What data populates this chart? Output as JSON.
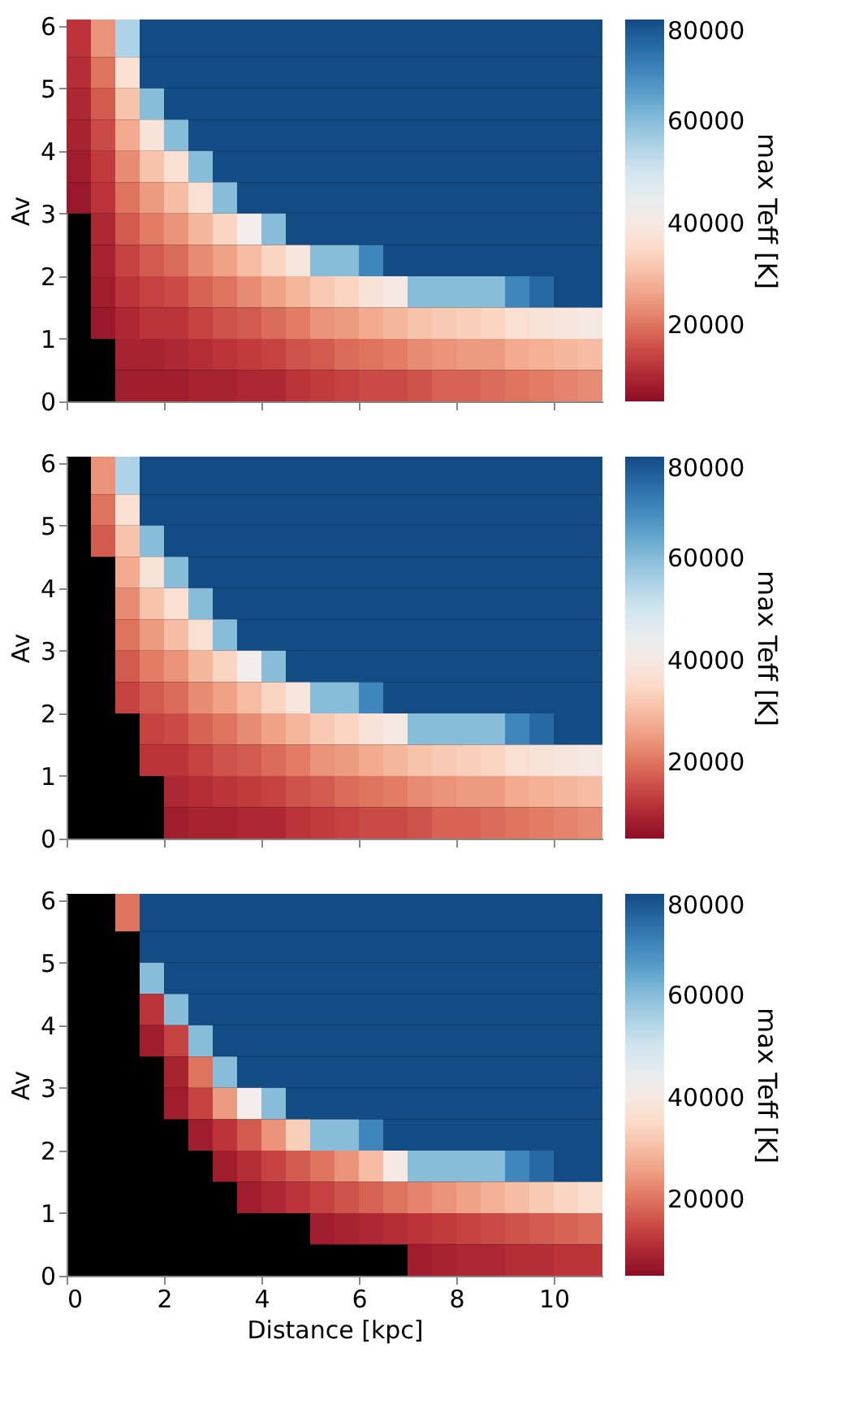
{
  "chart_data": [
    {
      "type": "heatmap",
      "tick_labels": "y",
      "ylabel": "Av",
      "clabel": "max Teff [K]",
      "xlim": [
        0,
        11
      ],
      "ylim": [
        0,
        6.1
      ],
      "xticks": [
        0,
        2,
        4,
        6,
        8,
        10
      ],
      "yticks": [
        0,
        1,
        2,
        3,
        4,
        5,
        6
      ],
      "clim": [
        5000,
        80000
      ],
      "cticks": [
        20000,
        40000,
        60000,
        80000
      ],
      "x": [
        0.25,
        0.75,
        1.25,
        1.75,
        2.25,
        2.75,
        3.25,
        3.75,
        4.25,
        4.75,
        5.25,
        5.75,
        6.25,
        6.75,
        7.25,
        7.75,
        8.25,
        8.75,
        9.25,
        9.75,
        10.25,
        10.75
      ],
      "y": [
        5.75,
        5.25,
        4.75,
        4.25,
        3.75,
        3.25,
        2.75,
        2.25,
        1.75,
        1.25,
        0.75,
        0.25
      ],
      "cells": [
        [
          12000,
          24000,
          55000,
          80000,
          80000,
          80000,
          80000,
          80000,
          80000,
          80000,
          80000,
          80000,
          80000,
          80000,
          80000,
          80000,
          80000,
          80000,
          80000,
          80000,
          80000,
          80000
        ],
        [
          11000,
          20000,
          37000,
          80000,
          80000,
          80000,
          80000,
          80000,
          80000,
          80000,
          80000,
          80000,
          80000,
          80000,
          80000,
          80000,
          80000,
          80000,
          80000,
          80000,
          80000,
          80000
        ],
        [
          10000,
          17000,
          31000,
          60000,
          80000,
          80000,
          80000,
          80000,
          80000,
          80000,
          80000,
          80000,
          80000,
          80000,
          80000,
          80000,
          80000,
          80000,
          80000,
          80000,
          80000,
          80000
        ],
        [
          9000,
          15000,
          27000,
          38000,
          60000,
          80000,
          80000,
          80000,
          80000,
          80000,
          80000,
          80000,
          80000,
          80000,
          80000,
          80000,
          80000,
          80000,
          80000,
          80000,
          80000,
          80000
        ],
        [
          8000,
          13000,
          23000,
          31000,
          37000,
          60000,
          80000,
          80000,
          80000,
          80000,
          80000,
          80000,
          80000,
          80000,
          80000,
          80000,
          80000,
          80000,
          80000,
          80000,
          80000,
          80000
        ],
        [
          7000,
          12000,
          20000,
          25000,
          30000,
          37000,
          60000,
          80000,
          80000,
          80000,
          80000,
          80000,
          80000,
          80000,
          80000,
          80000,
          80000,
          80000,
          80000,
          80000,
          80000,
          80000
        ],
        [
          null,
          10000,
          17000,
          21000,
          24000,
          29000,
          34000,
          42000,
          60000,
          80000,
          80000,
          80000,
          80000,
          80000,
          80000,
          80000,
          80000,
          80000,
          80000,
          80000,
          80000,
          80000
        ],
        [
          null,
          9000,
          14000,
          17000,
          19000,
          23000,
          26000,
          30000,
          34000,
          39000,
          60000,
          60000,
          70000,
          80000,
          80000,
          80000,
          80000,
          80000,
          80000,
          80000,
          80000,
          80000
        ],
        [
          null,
          8000,
          12000,
          14000,
          15000,
          18000,
          20000,
          23000,
          26000,
          29000,
          32000,
          34000,
          38000,
          40000,
          60000,
          60000,
          60000,
          60000,
          70000,
          75000,
          80000,
          80000
        ],
        [
          null,
          7000,
          10000,
          12000,
          12000,
          14000,
          16000,
          17000,
          19000,
          21000,
          24000,
          25000,
          27000,
          29000,
          31000,
          32000,
          33000,
          34000,
          37000,
          38000,
          39000,
          40000
        ],
        [
          null,
          null,
          9000,
          9000,
          10000,
          11000,
          12000,
          13000,
          14000,
          16000,
          17000,
          19000,
          20000,
          21000,
          23000,
          24000,
          25000,
          25000,
          27000,
          28000,
          29000,
          30000
        ],
        [
          null,
          null,
          8000,
          8000,
          8000,
          9000,
          9000,
          10000,
          10000,
          12000,
          13000,
          14000,
          15000,
          15000,
          16000,
          18000,
          18000,
          19000,
          20000,
          21000,
          22000,
          23000
        ]
      ]
    },
    {
      "type": "heatmap",
      "tick_labels": "y",
      "ylabel": "Av",
      "clabel": "max Teff [K]",
      "xlim": [
        0,
        11
      ],
      "ylim": [
        0,
        6.1
      ],
      "xticks": [
        0,
        2,
        4,
        6,
        8,
        10
      ],
      "yticks": [
        0,
        1,
        2,
        3,
        4,
        5,
        6
      ],
      "clim": [
        5000,
        80000
      ],
      "cticks": [
        20000,
        40000,
        60000,
        80000
      ],
      "x": [
        0.25,
        0.75,
        1.25,
        1.75,
        2.25,
        2.75,
        3.25,
        3.75,
        4.25,
        4.75,
        5.25,
        5.75,
        6.25,
        6.75,
        7.25,
        7.75,
        8.25,
        8.75,
        9.25,
        9.75,
        10.25,
        10.75
      ],
      "y": [
        5.75,
        5.25,
        4.75,
        4.25,
        3.75,
        3.25,
        2.75,
        2.25,
        1.75,
        1.25,
        0.75,
        0.25
      ],
      "cells": [
        [
          null,
          24000,
          55000,
          80000,
          80000,
          80000,
          80000,
          80000,
          80000,
          80000,
          80000,
          80000,
          80000,
          80000,
          80000,
          80000,
          80000,
          80000,
          80000,
          80000,
          80000,
          80000
        ],
        [
          null,
          20000,
          37000,
          80000,
          80000,
          80000,
          80000,
          80000,
          80000,
          80000,
          80000,
          80000,
          80000,
          80000,
          80000,
          80000,
          80000,
          80000,
          80000,
          80000,
          80000,
          80000
        ],
        [
          null,
          17000,
          31000,
          60000,
          80000,
          80000,
          80000,
          80000,
          80000,
          80000,
          80000,
          80000,
          80000,
          80000,
          80000,
          80000,
          80000,
          80000,
          80000,
          80000,
          80000,
          80000
        ],
        [
          null,
          null,
          27000,
          38000,
          60000,
          80000,
          80000,
          80000,
          80000,
          80000,
          80000,
          80000,
          80000,
          80000,
          80000,
          80000,
          80000,
          80000,
          80000,
          80000,
          80000,
          80000
        ],
        [
          null,
          null,
          23000,
          31000,
          37000,
          60000,
          80000,
          80000,
          80000,
          80000,
          80000,
          80000,
          80000,
          80000,
          80000,
          80000,
          80000,
          80000,
          80000,
          80000,
          80000,
          80000
        ],
        [
          null,
          null,
          20000,
          25000,
          30000,
          37000,
          60000,
          80000,
          80000,
          80000,
          80000,
          80000,
          80000,
          80000,
          80000,
          80000,
          80000,
          80000,
          80000,
          80000,
          80000,
          80000
        ],
        [
          null,
          null,
          17000,
          21000,
          24000,
          29000,
          34000,
          42000,
          60000,
          80000,
          80000,
          80000,
          80000,
          80000,
          80000,
          80000,
          80000,
          80000,
          80000,
          80000,
          80000,
          80000
        ],
        [
          null,
          null,
          14000,
          17000,
          19000,
          23000,
          26000,
          30000,
          34000,
          39000,
          60000,
          60000,
          70000,
          80000,
          80000,
          80000,
          80000,
          80000,
          80000,
          80000,
          80000,
          80000
        ],
        [
          null,
          null,
          null,
          14000,
          15000,
          18000,
          20000,
          23000,
          26000,
          29000,
          32000,
          34000,
          38000,
          40000,
          60000,
          60000,
          60000,
          60000,
          70000,
          75000,
          80000,
          80000
        ],
        [
          null,
          null,
          null,
          12000,
          12000,
          14000,
          16000,
          17000,
          19000,
          21000,
          24000,
          25000,
          27000,
          29000,
          31000,
          32000,
          33000,
          34000,
          37000,
          38000,
          39000,
          40000
        ],
        [
          null,
          null,
          null,
          null,
          10000,
          11000,
          12000,
          13000,
          14000,
          16000,
          17000,
          19000,
          20000,
          21000,
          23000,
          24000,
          25000,
          25000,
          27000,
          28000,
          29000,
          30000
        ],
        [
          null,
          null,
          null,
          null,
          8000,
          9000,
          9000,
          10000,
          10000,
          12000,
          13000,
          14000,
          15000,
          15000,
          16000,
          18000,
          18000,
          19000,
          20000,
          21000,
          22000,
          23000
        ]
      ]
    },
    {
      "type": "heatmap",
      "ylabel": "Av",
      "xlabel": "Distance [kpc]",
      "clabel": "max Teff [K]",
      "xlim": [
        0,
        11
      ],
      "ylim": [
        0,
        6.1
      ],
      "xticks": [
        0,
        2,
        4,
        6,
        8,
        10
      ],
      "yticks": [
        0,
        1,
        2,
        3,
        4,
        5,
        6
      ],
      "clim": [
        5000,
        80000
      ],
      "cticks": [
        20000,
        40000,
        60000,
        80000
      ],
      "x": [
        0.25,
        0.75,
        1.25,
        1.75,
        2.25,
        2.75,
        3.25,
        3.75,
        4.25,
        4.75,
        5.25,
        5.75,
        6.25,
        6.75,
        7.25,
        7.75,
        8.25,
        8.75,
        9.25,
        9.75,
        10.25,
        10.75
      ],
      "y": [
        5.75,
        5.25,
        4.75,
        4.25,
        3.75,
        3.25,
        2.75,
        2.25,
        1.75,
        1.25,
        0.75,
        0.25
      ],
      "cells": [
        [
          null,
          null,
          20000,
          80000,
          80000,
          80000,
          80000,
          80000,
          80000,
          80000,
          80000,
          80000,
          80000,
          80000,
          80000,
          80000,
          80000,
          80000,
          80000,
          80000,
          80000,
          80000
        ],
        [
          null,
          null,
          null,
          80000,
          80000,
          80000,
          80000,
          80000,
          80000,
          80000,
          80000,
          80000,
          80000,
          80000,
          80000,
          80000,
          80000,
          80000,
          80000,
          80000,
          80000,
          80000
        ],
        [
          null,
          null,
          null,
          60000,
          80000,
          80000,
          80000,
          80000,
          80000,
          80000,
          80000,
          80000,
          80000,
          80000,
          80000,
          80000,
          80000,
          80000,
          80000,
          80000,
          80000,
          80000
        ],
        [
          null,
          null,
          null,
          12000,
          60000,
          80000,
          80000,
          80000,
          80000,
          80000,
          80000,
          80000,
          80000,
          80000,
          80000,
          80000,
          80000,
          80000,
          80000,
          80000,
          80000,
          80000
        ],
        [
          null,
          null,
          null,
          8000,
          14000,
          60000,
          80000,
          80000,
          80000,
          80000,
          80000,
          80000,
          80000,
          80000,
          80000,
          80000,
          80000,
          80000,
          80000,
          80000,
          80000,
          80000
        ],
        [
          null,
          null,
          null,
          null,
          9000,
          20000,
          60000,
          80000,
          80000,
          80000,
          80000,
          80000,
          80000,
          80000,
          80000,
          80000,
          80000,
          80000,
          80000,
          80000,
          80000,
          80000
        ],
        [
          null,
          null,
          null,
          null,
          8000,
          14000,
          25000,
          42000,
          60000,
          80000,
          80000,
          80000,
          80000,
          80000,
          80000,
          80000,
          80000,
          80000,
          80000,
          80000,
          80000,
          80000
        ],
        [
          null,
          null,
          null,
          null,
          null,
          8000,
          12000,
          17000,
          24000,
          33000,
          60000,
          60000,
          70000,
          80000,
          80000,
          80000,
          80000,
          80000,
          80000,
          80000,
          80000,
          80000
        ],
        [
          null,
          null,
          null,
          null,
          null,
          null,
          8000,
          11000,
          14000,
          17000,
          20000,
          24000,
          30000,
          40000,
          60000,
          60000,
          60000,
          60000,
          70000,
          75000,
          80000,
          80000
        ],
        [
          null,
          null,
          null,
          null,
          null,
          null,
          null,
          8000,
          10000,
          12000,
          14000,
          16000,
          18000,
          20000,
          22000,
          24000,
          26000,
          28000,
          30000,
          32000,
          34000,
          36000
        ],
        [
          null,
          null,
          null,
          null,
          null,
          null,
          null,
          null,
          null,
          null,
          8000,
          9000,
          10000,
          11000,
          12000,
          13000,
          14000,
          15000,
          16000,
          17000,
          18000,
          19000
        ],
        [
          null,
          null,
          null,
          null,
          null,
          null,
          null,
          null,
          null,
          null,
          null,
          null,
          null,
          null,
          8000,
          9000,
          10000,
          10000,
          11000,
          11000,
          12000,
          12000
        ]
      ]
    }
  ]
}
